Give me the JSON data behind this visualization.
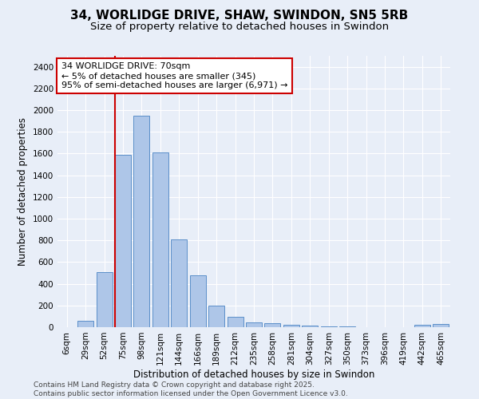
{
  "title1": "34, WORLIDGE DRIVE, SHAW, SWINDON, SN5 5RB",
  "title2": "Size of property relative to detached houses in Swindon",
  "xlabel": "Distribution of detached houses by size in Swindon",
  "ylabel": "Number of detached properties",
  "categories": [
    "6sqm",
    "29sqm",
    "52sqm",
    "75sqm",
    "98sqm",
    "121sqm",
    "144sqm",
    "166sqm",
    "189sqm",
    "212sqm",
    "235sqm",
    "258sqm",
    "281sqm",
    "304sqm",
    "327sqm",
    "350sqm",
    "373sqm",
    "396sqm",
    "419sqm",
    "442sqm",
    "465sqm"
  ],
  "values": [
    0,
    60,
    510,
    1590,
    1950,
    1610,
    810,
    480,
    200,
    95,
    45,
    35,
    25,
    15,
    10,
    10,
    0,
    0,
    0,
    20,
    30
  ],
  "bar_color": "#aec6e8",
  "bar_edge_color": "#5b8fc9",
  "background_color": "#e8eef8",
  "grid_color": "#ffffff",
  "vline_color": "#cc0000",
  "annotation_text": "34 WORLIDGE DRIVE: 70sqm\n← 5% of detached houses are smaller (345)\n95% of semi-detached houses are larger (6,971) →",
  "annotation_box_color": "#ffffff",
  "annotation_box_edge": "#cc0000",
  "ylim": [
    0,
    2500
  ],
  "yticks": [
    0,
    200,
    400,
    600,
    800,
    1000,
    1200,
    1400,
    1600,
    1800,
    2000,
    2200,
    2400
  ],
  "footer": "Contains HM Land Registry data © Crown copyright and database right 2025.\nContains public sector information licensed under the Open Government Licence v3.0.",
  "title1_fontsize": 11,
  "title2_fontsize": 9.5,
  "xlabel_fontsize": 8.5,
  "ylabel_fontsize": 8.5,
  "tick_fontsize": 7.5,
  "annotation_fontsize": 8,
  "footer_fontsize": 6.5
}
